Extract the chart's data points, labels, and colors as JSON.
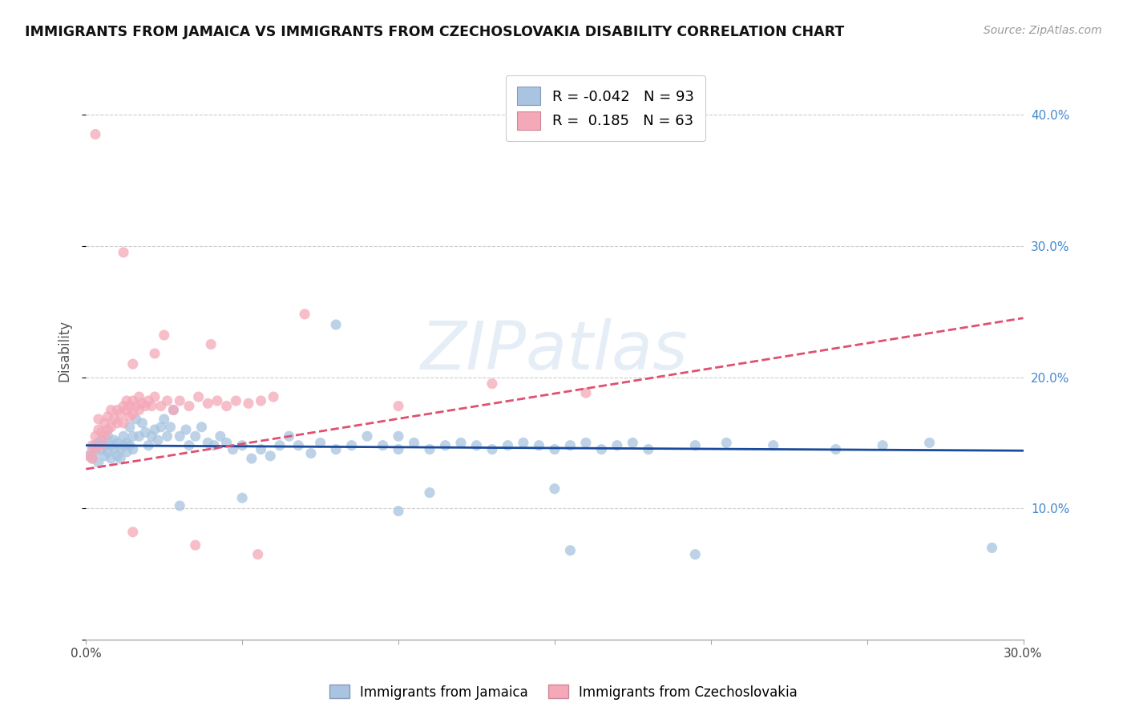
{
  "title": "IMMIGRANTS FROM JAMAICA VS IMMIGRANTS FROM CZECHOSLOVAKIA DISABILITY CORRELATION CHART",
  "source": "Source: ZipAtlas.com",
  "ylabel": "Disability",
  "xlim": [
    0.0,
    0.3
  ],
  "ylim": [
    0.0,
    0.44
  ],
  "xticks": [
    0.0,
    0.05,
    0.1,
    0.15,
    0.2,
    0.25,
    0.3
  ],
  "yticks": [
    0.0,
    0.1,
    0.2,
    0.3,
    0.4
  ],
  "xtick_labels": [
    "0.0%",
    "",
    "",
    "",
    "",
    "",
    "30.0%"
  ],
  "ytick_labels": [
    "",
    "10.0%",
    "20.0%",
    "30.0%",
    "40.0%"
  ],
  "jamaica_R": -0.042,
  "jamaica_N": 93,
  "czech_R": 0.185,
  "czech_N": 63,
  "jamaica_color": "#a8c4e0",
  "czech_color": "#f4a8b8",
  "jamaica_line_color": "#1a4a9a",
  "czech_line_color": "#e05070",
  "background_color": "#ffffff",
  "grid_color": "#cccccc",
  "watermark": "ZIPatlas",
  "jamaica_scatter": [
    [
      0.001,
      0.14
    ],
    [
      0.002,
      0.145
    ],
    [
      0.002,
      0.138
    ],
    [
      0.003,
      0.142
    ],
    [
      0.003,
      0.148
    ],
    [
      0.004,
      0.15
    ],
    [
      0.004,
      0.135
    ],
    [
      0.005,
      0.145
    ],
    [
      0.005,
      0.152
    ],
    [
      0.006,
      0.14
    ],
    [
      0.006,
      0.148
    ],
    [
      0.007,
      0.155
    ],
    [
      0.007,
      0.143
    ],
    [
      0.008,
      0.148
    ],
    [
      0.008,
      0.138
    ],
    [
      0.009,
      0.145
    ],
    [
      0.009,
      0.152
    ],
    [
      0.01,
      0.15
    ],
    [
      0.01,
      0.14
    ],
    [
      0.011,
      0.145
    ],
    [
      0.011,
      0.138
    ],
    [
      0.012,
      0.155
    ],
    [
      0.012,
      0.148
    ],
    [
      0.013,
      0.143
    ],
    [
      0.013,
      0.15
    ],
    [
      0.014,
      0.162
    ],
    [
      0.014,
      0.148
    ],
    [
      0.015,
      0.155
    ],
    [
      0.015,
      0.145
    ],
    [
      0.016,
      0.168
    ],
    [
      0.017,
      0.155
    ],
    [
      0.018,
      0.165
    ],
    [
      0.019,
      0.158
    ],
    [
      0.02,
      0.148
    ],
    [
      0.021,
      0.155
    ],
    [
      0.022,
      0.16
    ],
    [
      0.023,
      0.152
    ],
    [
      0.024,
      0.162
    ],
    [
      0.025,
      0.168
    ],
    [
      0.026,
      0.155
    ],
    [
      0.027,
      0.162
    ],
    [
      0.028,
      0.175
    ],
    [
      0.03,
      0.155
    ],
    [
      0.032,
      0.16
    ],
    [
      0.033,
      0.148
    ],
    [
      0.035,
      0.155
    ],
    [
      0.037,
      0.162
    ],
    [
      0.039,
      0.15
    ],
    [
      0.041,
      0.148
    ],
    [
      0.043,
      0.155
    ],
    [
      0.045,
      0.15
    ],
    [
      0.047,
      0.145
    ],
    [
      0.05,
      0.148
    ],
    [
      0.053,
      0.138
    ],
    [
      0.056,
      0.145
    ],
    [
      0.059,
      0.14
    ],
    [
      0.062,
      0.148
    ],
    [
      0.065,
      0.155
    ],
    [
      0.068,
      0.148
    ],
    [
      0.072,
      0.142
    ],
    [
      0.075,
      0.15
    ],
    [
      0.08,
      0.145
    ],
    [
      0.085,
      0.148
    ],
    [
      0.09,
      0.155
    ],
    [
      0.095,
      0.148
    ],
    [
      0.1,
      0.145
    ],
    [
      0.105,
      0.15
    ],
    [
      0.11,
      0.145
    ],
    [
      0.115,
      0.148
    ],
    [
      0.12,
      0.15
    ],
    [
      0.125,
      0.148
    ],
    [
      0.13,
      0.145
    ],
    [
      0.135,
      0.148
    ],
    [
      0.14,
      0.15
    ],
    [
      0.145,
      0.148
    ],
    [
      0.15,
      0.145
    ],
    [
      0.155,
      0.148
    ],
    [
      0.16,
      0.15
    ],
    [
      0.165,
      0.145
    ],
    [
      0.17,
      0.148
    ],
    [
      0.175,
      0.15
    ],
    [
      0.18,
      0.145
    ],
    [
      0.195,
      0.148
    ],
    [
      0.205,
      0.15
    ],
    [
      0.22,
      0.148
    ],
    [
      0.24,
      0.145
    ],
    [
      0.255,
      0.148
    ],
    [
      0.27,
      0.15
    ],
    [
      0.08,
      0.24
    ],
    [
      0.05,
      0.108
    ],
    [
      0.11,
      0.112
    ],
    [
      0.03,
      0.102
    ],
    [
      0.155,
      0.068
    ],
    [
      0.195,
      0.065
    ],
    [
      0.29,
      0.07
    ],
    [
      0.1,
      0.155
    ],
    [
      0.15,
      0.115
    ],
    [
      0.1,
      0.098
    ]
  ],
  "czech_scatter": [
    [
      0.001,
      0.14
    ],
    [
      0.002,
      0.148
    ],
    [
      0.002,
      0.138
    ],
    [
      0.003,
      0.155
    ],
    [
      0.003,
      0.145
    ],
    [
      0.004,
      0.16
    ],
    [
      0.004,
      0.168
    ],
    [
      0.005,
      0.158
    ],
    [
      0.005,
      0.148
    ],
    [
      0.006,
      0.165
    ],
    [
      0.006,
      0.155
    ],
    [
      0.007,
      0.17
    ],
    [
      0.007,
      0.16
    ],
    [
      0.008,
      0.175
    ],
    [
      0.008,
      0.162
    ],
    [
      0.009,
      0.168
    ],
    [
      0.01,
      0.175
    ],
    [
      0.01,
      0.165
    ],
    [
      0.011,
      0.172
    ],
    [
      0.012,
      0.178
    ],
    [
      0.012,
      0.165
    ],
    [
      0.013,
      0.175
    ],
    [
      0.013,
      0.182
    ],
    [
      0.014,
      0.17
    ],
    [
      0.014,
      0.178
    ],
    [
      0.015,
      0.182
    ],
    [
      0.015,
      0.172
    ],
    [
      0.016,
      0.178
    ],
    [
      0.017,
      0.185
    ],
    [
      0.017,
      0.175
    ],
    [
      0.018,
      0.18
    ],
    [
      0.019,
      0.178
    ],
    [
      0.02,
      0.182
    ],
    [
      0.021,
      0.178
    ],
    [
      0.022,
      0.185
    ],
    [
      0.024,
      0.178
    ],
    [
      0.026,
      0.182
    ],
    [
      0.028,
      0.175
    ],
    [
      0.03,
      0.182
    ],
    [
      0.033,
      0.178
    ],
    [
      0.036,
      0.185
    ],
    [
      0.039,
      0.18
    ],
    [
      0.042,
      0.182
    ],
    [
      0.045,
      0.178
    ],
    [
      0.048,
      0.182
    ],
    [
      0.052,
      0.18
    ],
    [
      0.056,
      0.182
    ],
    [
      0.06,
      0.185
    ],
    [
      0.003,
      0.385
    ],
    [
      0.012,
      0.295
    ],
    [
      0.025,
      0.232
    ],
    [
      0.04,
      0.225
    ],
    [
      0.015,
      0.082
    ],
    [
      0.035,
      0.072
    ],
    [
      0.055,
      0.065
    ],
    [
      0.07,
      0.248
    ],
    [
      0.1,
      0.178
    ],
    [
      0.13,
      0.195
    ],
    [
      0.16,
      0.188
    ],
    [
      0.015,
      0.21
    ],
    [
      0.022,
      0.218
    ]
  ],
  "jamaica_line": {
    "x0": 0.0,
    "y0": 0.148,
    "x1": 0.3,
    "y1": 0.144
  },
  "czech_line": {
    "x0": 0.0,
    "y0": 0.13,
    "x1": 0.3,
    "y1": 0.245
  }
}
